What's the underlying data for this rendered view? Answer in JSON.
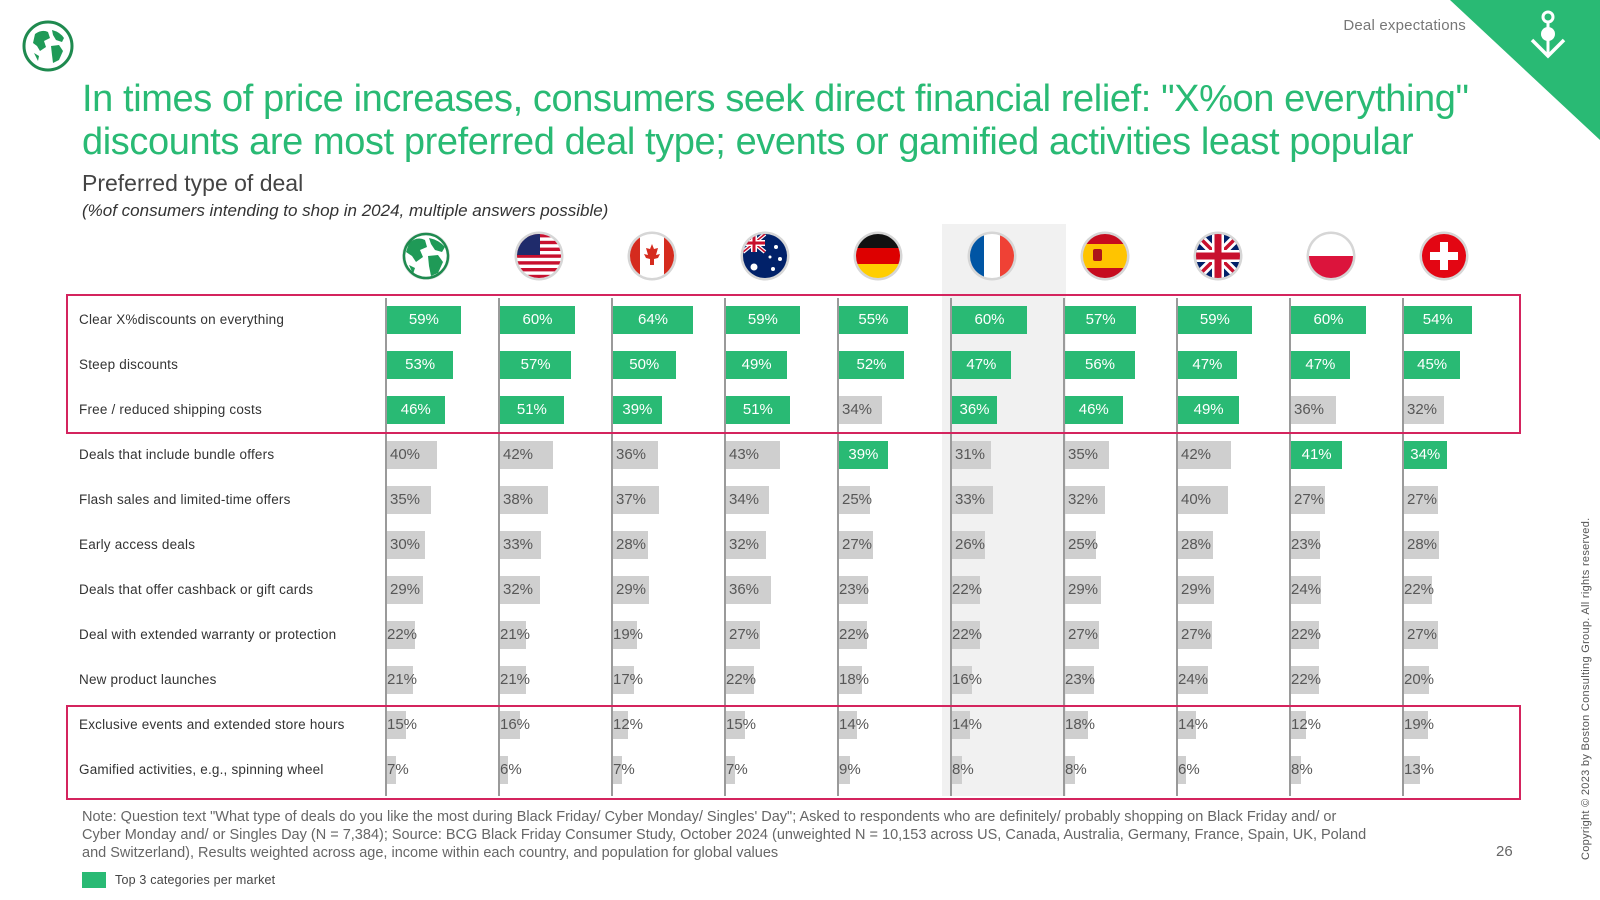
{
  "header": {
    "section_label": "Deal expectations",
    "title_line1": "In times of price increases, consumers seek direct financial relief: \"X%on everything\"",
    "title_line2": "discounts are most preferred deal type; events or gamified activities least popular",
    "subtitle": "Preferred type of deal",
    "subnote": "(%of consumers intending to shop in 2024, multiple answers possible)"
  },
  "chart_data": {
    "type": "bar",
    "series": [
      {
        "values": [
          59,
          53,
          46,
          40,
          35,
          30,
          29,
          22,
          21,
          15,
          7
        ],
        "top3": [
          0,
          1,
          2
        ]
      },
      {
        "values": [
          60,
          57,
          51,
          42,
          38,
          33,
          32,
          21,
          21,
          16,
          6
        ],
        "top3": [
          0,
          1,
          2
        ]
      },
      {
        "values": [
          64,
          50,
          39,
          36,
          37,
          28,
          29,
          19,
          17,
          12,
          7
        ],
        "top3": [
          0,
          1,
          2
        ]
      },
      {
        "values": [
          59,
          49,
          51,
          43,
          34,
          32,
          36,
          27,
          22,
          15,
          7
        ],
        "top3": [
          0,
          1,
          2
        ]
      },
      {
        "values": [
          55,
          52,
          34,
          39,
          25,
          27,
          23,
          22,
          18,
          14,
          9
        ],
        "top3": [
          0,
          1,
          3
        ]
      },
      {
        "values": [
          60,
          47,
          36,
          31,
          33,
          26,
          22,
          22,
          16,
          14,
          8
        ],
        "top3": [
          0,
          1,
          2
        ]
      },
      {
        "values": [
          57,
          56,
          46,
          35,
          32,
          25,
          29,
          27,
          23,
          18,
          8
        ],
        "top3": [
          0,
          1,
          2
        ]
      },
      {
        "values": [
          59,
          47,
          49,
          42,
          40,
          28,
          29,
          27,
          24,
          14,
          6
        ],
        "top3": [
          0,
          1,
          2
        ]
      },
      {
        "values": [
          60,
          47,
          36,
          41,
          27,
          23,
          24,
          22,
          22,
          12,
          8
        ],
        "top3": [
          0,
          1,
          3
        ]
      },
      {
        "values": [
          54,
          45,
          32,
          34,
          27,
          28,
          22,
          27,
          20,
          19,
          13
        ],
        "top3": [
          0,
          1,
          3
        ]
      }
    ],
    "categories": [
      "Clear X%discounts on everything",
      "Steep discounts",
      "Free /  reduced shipping costs",
      "Deals that include bundle offers",
      "Flash sales and limited-time offers",
      "Early access deals",
      "Deals that offer cashback or gift cards",
      "Deal with extended warranty or protection",
      "New product launches",
      "Exclusive events and extended store hours",
      "Gamified activities, e.g., spinning wheel"
    ],
    "value_suffix": "%",
    "highlighted_market_index": 5,
    "market_icons": [
      "globe",
      "flag-us",
      "flag-canada",
      "flag-australia",
      "flag-germany",
      "flag-france",
      "flag-spain",
      "flag-uk",
      "flag-poland",
      "flag-switzerland"
    ],
    "colors": {
      "top3": "#29ba74",
      "other": "#cfcfcf",
      "box": "#d4245e"
    }
  },
  "footer": {
    "note_line1": "Note: Question text \"What type of deals do you like the most during Black Friday/ Cyber Monday/ Singles' Day\"; Asked to respondents who are definitely/ probably shopping on Black Friday and/ or",
    "note_line2": "Cyber Monday and/ or Singles Day (N = 7,384); Source: BCG Black Friday Consumer Study, October 2024 (unweighted N = 10,153 across US, Canada, Australia, Germany, France, Spain, UK, Poland",
    "note_line3": "and Switzerland), Results weighted across age, income within each country, and population for global values",
    "page_number": "26",
    "legend_label": "Top 3 categories per market",
    "copyright": "Copyright © 2023 by Boston Consulting Group. All rights reserved."
  }
}
